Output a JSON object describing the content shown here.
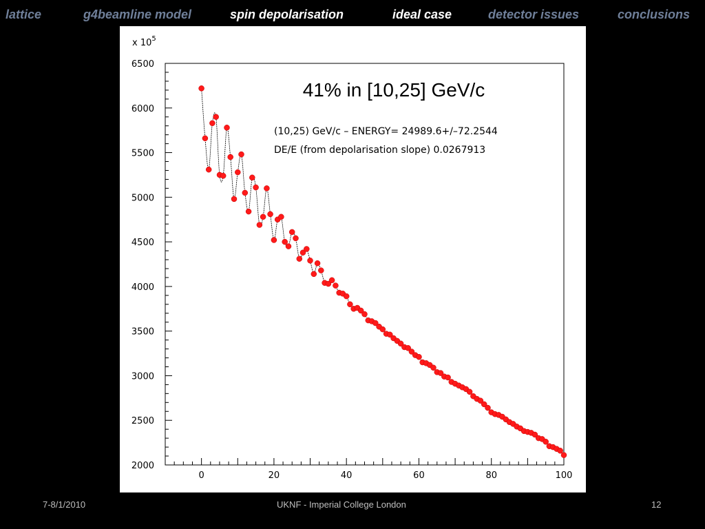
{
  "nav": {
    "items": [
      {
        "label": "lattice",
        "active": false
      },
      {
        "label": "g4beamline model",
        "active": false
      },
      {
        "label": "spin depolarisation",
        "active": true
      },
      {
        "label": "ideal case",
        "active": true
      },
      {
        "label": "detector issues",
        "active": false
      },
      {
        "label": "conclusions",
        "active": false
      }
    ]
  },
  "footer": {
    "date": "7-8/1/2010",
    "center": "UKNF - Imperial College London",
    "page": "12"
  },
  "chart_data": {
    "type": "scatter",
    "title": "41% in [10,25] GeV/c",
    "annotation_line1": "(10,25) GeV/c  – ENERGY= 24989.6+/–72.2544",
    "annotation_line2": "DE/E (from depolarisation slope)  0.0267913",
    "y_multiplier": "x 10",
    "y_multiplier_exp": "5",
    "xlim": [
      -10,
      100
    ],
    "ylim": [
      2000,
      6500
    ],
    "xticks": [
      "0",
      "20",
      "40",
      "60",
      "80",
      "100"
    ],
    "yticks": [
      "2000",
      "2500",
      "3000",
      "3500",
      "4000",
      "4500",
      "5000",
      "5500",
      "6000",
      "6500"
    ],
    "colors": {
      "points": "#ff1a1a",
      "curve": "#000000"
    },
    "series": [
      {
        "x": [
          0,
          1,
          2,
          3,
          4,
          5,
          6,
          7,
          8,
          9,
          10,
          11,
          12,
          13,
          14,
          15,
          16,
          17,
          18,
          19,
          20,
          21,
          22,
          23,
          24,
          25,
          26,
          27,
          28,
          29,
          30,
          31,
          32,
          33,
          34,
          35,
          36,
          37,
          38,
          39,
          40,
          41,
          42,
          43,
          44,
          45,
          46,
          47,
          48,
          49,
          50,
          51,
          52,
          53,
          54,
          55,
          56,
          57,
          58,
          59,
          60,
          61,
          62,
          63,
          64,
          65,
          66,
          67,
          68,
          69,
          70,
          71,
          72,
          73,
          74,
          75,
          76,
          77,
          78,
          79,
          80,
          81,
          82,
          83,
          84,
          85,
          86,
          87,
          88,
          89,
          90,
          91,
          92,
          93,
          94,
          95,
          96,
          97,
          98,
          99,
          100
        ],
        "y": [
          6220,
          5660,
          5310,
          5830,
          5900,
          5250,
          5240,
          5780,
          5450,
          4980,
          5280,
          5480,
          5050,
          4840,
          5220,
          5110,
          4690,
          4780,
          5100,
          4810,
          4520,
          4750,
          4780,
          4500,
          4450,
          4610,
          4540,
          4310,
          4380,
          4420,
          4290,
          4140,
          4260,
          4180,
          4040,
          4030,
          4070,
          4010,
          3930,
          3920,
          3890,
          3800,
          3750,
          3760,
          3730,
          3690,
          3620,
          3610,
          3590,
          3550,
          3520,
          3470,
          3460,
          3420,
          3390,
          3360,
          3320,
          3310,
          3270,
          3230,
          3210,
          3150,
          3140,
          3120,
          3090,
          3040,
          3030,
          2990,
          2980,
          2930,
          2910,
          2890,
          2870,
          2850,
          2820,
          2770,
          2740,
          2720,
          2680,
          2640,
          2590,
          2570,
          2560,
          2540,
          2510,
          2480,
          2460,
          2430,
          2410,
          2380,
          2370,
          2360,
          2340,
          2300,
          2290,
          2260,
          2210,
          2200,
          2180,
          2160,
          2110
        ]
      }
    ]
  }
}
